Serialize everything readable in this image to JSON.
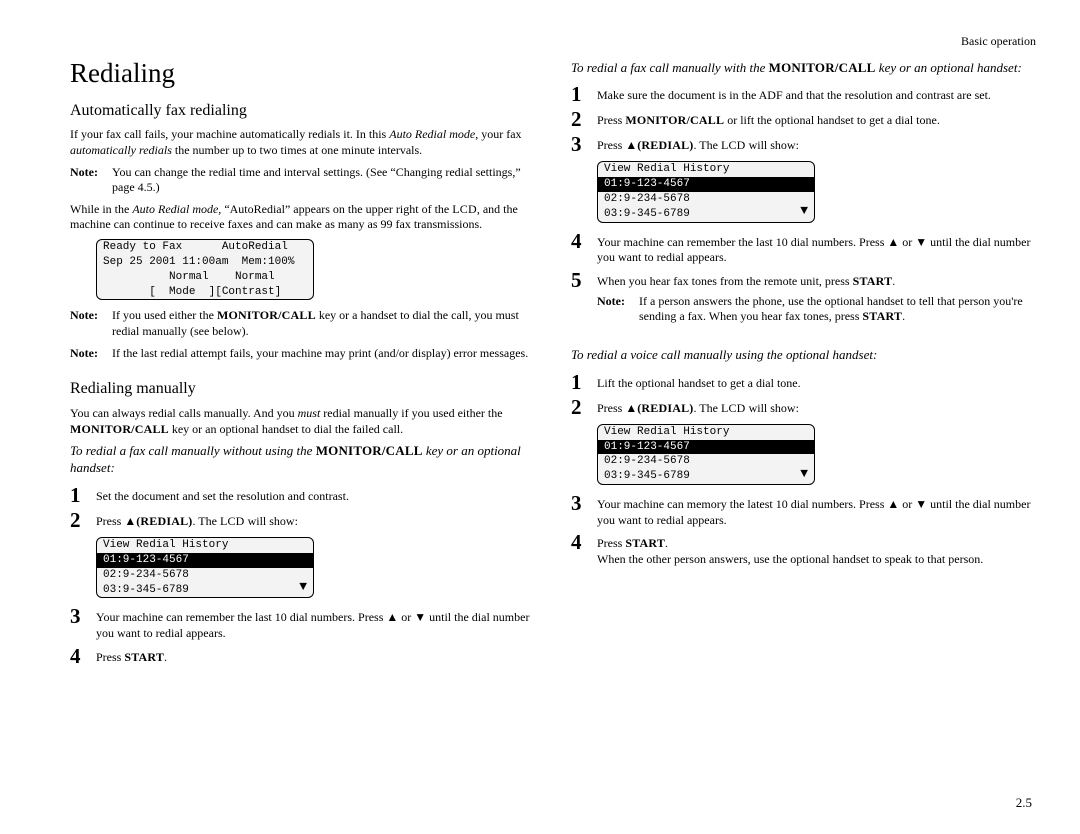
{
  "header": {
    "section": "Basic operation"
  },
  "title": "Redialing",
  "col1": {
    "h2a": "Automatically fax redialing",
    "p1_a": "If your fax call fails, your machine automatically redials it. In this ",
    "p1_b": "Auto Redial mode",
    "p1_c": ", your fax ",
    "p1_d": "automatically redials",
    "p1_e": " the number up to two times at one minute intervals.",
    "note1": "You can change the redial time and interval settings. (See “Changing redial settings,” page 4.5.)",
    "p2_a": "While in the ",
    "p2_b": "Auto Redial mode,",
    "p2_c": " “AutoRedial” appears on the upper right of the ",
    "p2_d": ", and the machine can continue to receive faxes and can make as many as 99 fax transmissions.",
    "lcd1": {
      "l1": "Ready to Fax      AutoRedial",
      "l2": "Sep 25 2001 11:00am  Mem:100%",
      "l3": "          Normal    Normal",
      "l4": "       [  Mode  ][Contrast]"
    },
    "note2_a": "If you used either the ",
    "note2_b": " key or a handset to dial the call, you must redial manually (see below).",
    "note3": "If the last redial attempt fails, your machine may print (and/or display) error messages.",
    "h2b": "Redialing manually",
    "p3_a": "You can always redial calls manually. And you ",
    "p3_b": "must",
    "p3_c": " redial manually if you used either the ",
    "p3_d": " key or an optional handset to dial the failed call.",
    "intro1_a": "To redial a fax call manually without using the ",
    "intro1_b": " key or an optional handset:",
    "s1": "Set the document and set the resolution and contrast.",
    "s2_a": "Press ▲",
    "s2_b": ". The ",
    "s2_c": " will show:",
    "lcd2": {
      "t": "View Redial History",
      "r1": "01:9-123-4567",
      "r2": "02:9-234-5678",
      "r3": "03:9-345-6789"
    },
    "s3": "Your machine can remember the last 10 dial numbers. Press ▲ or ▼ until the dial number you want to redial appears.",
    "s4_a": "Press "
  },
  "col2": {
    "intro2_a": "To redial a fax call manually with the ",
    "intro2_b": " key or an optional handset:",
    "s1": "Make sure the document is in the ADF and that the resolution and contrast are set.",
    "s2_a": "Press ",
    "s2_b": " or lift the optional handset to get a dial tone.",
    "s3_a": "Press ▲",
    "s3_b": ". The ",
    "s3_c": " will show:",
    "lcd3": {
      "t": "View Redial History",
      "r1": "01:9-123-4567",
      "r2": "02:9-234-5678",
      "r3": "03:9-345-6789"
    },
    "s4": "Your machine can remember the last 10 dial numbers. Press ▲ or ▼ until the dial number you want to redial appears.",
    "s5_a": "When you hear fax tones from the remote unit, press ",
    "s5_note_a": "If a person answers the phone, use the optional handset to tell that person you're sending a fax. When you hear fax tones, press ",
    "intro3": "To redial a voice call manually using the optional handset:",
    "v1": "Lift the optional handset to get a dial tone.",
    "v2_a": "Press ▲",
    "v2_b": ". The ",
    "v2_c": " will show:",
    "lcd4": {
      "t": "View Redial History",
      "r1": "01:9-123-4567",
      "r2": "02:9-234-5678",
      "r3": "03:9-345-6789"
    },
    "v3": "Your machine can memory the latest 10 dial numbers. Press ▲ or ▼ until the dial number you want to redial appears.",
    "v4_a": "Press ",
    "v4_b": "When the other person answers, use the optional handset to speak to that person."
  },
  "labels": {
    "note": "Note:",
    "monitor_call": "MONITOR/CALL",
    "redial": "(REDIAL)",
    "lcd": "LCD",
    "start": "START",
    "arrow": "▼"
  },
  "page_number": "2.5"
}
